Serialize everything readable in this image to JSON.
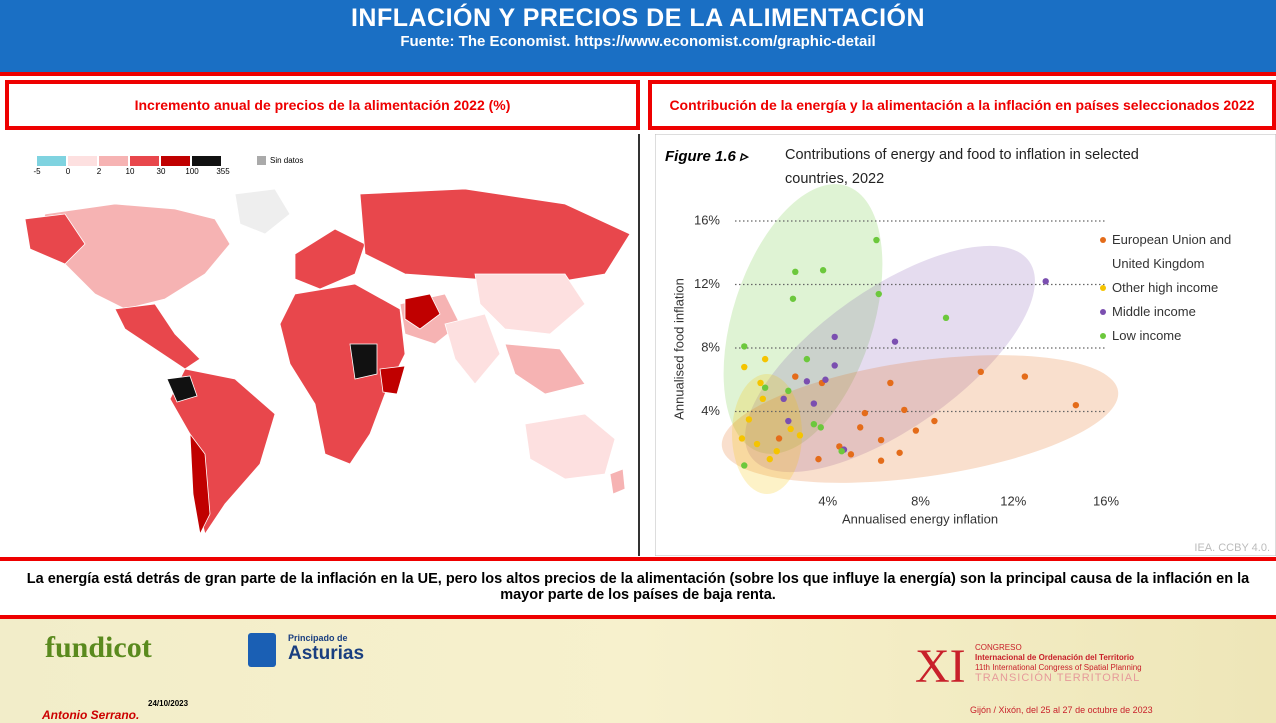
{
  "header": {
    "title": "INFLACIÓN Y PRECIOS DE LA ALIMENTACIÓN",
    "subtitle": "Fuente: The Economist. https://www.economist.com/graphic-detail"
  },
  "left_panel": {
    "title": "Incremento anual de precios de la alimentación 2022 (%)",
    "legend": {
      "ticks": [
        -5,
        0,
        2,
        10,
        30,
        100,
        355
      ],
      "colors": [
        "#7fd3e0",
        "#fde0e0",
        "#f6b3b3",
        "#e8474c",
        "#c00000",
        "#111111"
      ],
      "no_data": "Sin datos",
      "no_data_color": "#aaaaaa"
    }
  },
  "right_panel": {
    "title": "Contribución de la energía y la alimentación a la inflación en países seleccionados 2022"
  },
  "chart_data": {
    "type": "scatter",
    "title": "Figure 1.6 ▹",
    "subtitle": "Contributions of energy and food to inflation in selected countries, 2022",
    "xlabel": "Annualised energy inflation",
    "ylabel": "Annualised food inflation",
    "xlim": [
      0,
      16
    ],
    "ylim": [
      0,
      16
    ],
    "xticks": [
      {
        "value": 4,
        "label": "4%"
      },
      {
        "value": 8,
        "label": "8%"
      },
      {
        "value": 12,
        "label": "12%"
      },
      {
        "value": 16,
        "label": "16%"
      }
    ],
    "yticks": [
      {
        "value": 4,
        "label": "4%"
      },
      {
        "value": 8,
        "label": "8%"
      },
      {
        "value": 12,
        "label": "12%"
      },
      {
        "value": 16,
        "label": "16%"
      }
    ],
    "grid": true,
    "series": [
      {
        "name": "European Union and United Kingdom",
        "color": "#e46c1a",
        "x": [
          14.7,
          12.5,
          10.6,
          8.6,
          7.8,
          7.3,
          6.7,
          6.3,
          6.3,
          7.1,
          5.6,
          5.4,
          4.5,
          3.6,
          2.6,
          1.9,
          3.75,
          5.0
        ],
        "y": [
          4.4,
          6.2,
          6.5,
          3.4,
          2.8,
          4.1,
          5.8,
          0.9,
          2.2,
          1.4,
          3.9,
          3.0,
          1.8,
          1.0,
          6.2,
          2.3,
          5.8,
          1.3
        ]
      },
      {
        "name": "Other high income",
        "color": "#f5c400",
        "x": [
          0.3,
          0.6,
          0.95,
          1.2,
          1.5,
          1.8,
          2.4,
          1.3,
          0.4,
          2.8,
          1.1
        ],
        "y": [
          2.3,
          3.5,
          1.95,
          4.8,
          1.0,
          1.5,
          2.9,
          7.3,
          6.8,
          2.5,
          5.8
        ]
      },
      {
        "name": "Middle income",
        "color": "#7b4fb0",
        "x": [
          13.4,
          6.9,
          4.3,
          4.3,
          3.4,
          3.1,
          2.1,
          3.9,
          4.7,
          2.3
        ],
        "y": [
          12.2,
          8.4,
          8.7,
          6.9,
          4.5,
          5.9,
          4.8,
          6.0,
          1.6,
          3.4
        ]
      },
      {
        "name": "Low income",
        "color": "#6cc83c",
        "x": [
          6.1,
          3.8,
          2.6,
          2.5,
          6.2,
          9.1,
          0.4,
          0.4,
          3.1,
          2.3,
          3.7,
          4.6,
          1.3,
          3.4
        ],
        "y": [
          14.8,
          12.9,
          12.8,
          11.1,
          11.4,
          9.9,
          8.1,
          0.6,
          7.3,
          5.3,
          3.0,
          1.5,
          5.5,
          3.2
        ]
      }
    ],
    "note": "IEA. CCBY 4.0."
  },
  "caption": "La energía está detrás de gran parte de la inflación en la UE, pero los altos precios de la alimentación (sobre los que influye la energía) son la principal causa de la inflación en la mayor parte de los países de baja renta.",
  "footer": {
    "logo1": "fundicot",
    "logo2_small": "Principado de",
    "logo2": "Asturias",
    "congress_number": "XI",
    "congress_line1": "CONGRESO",
    "congress_line2": "Internacional de Ordenación del Territorio",
    "congress_line3": "11th International Congress of Spatial Planning",
    "congress_line4": "TRANSICIÓN TERRITORIAL",
    "congress_place": "Gijón / Xixón, del 25 al 27 de octubre de 2023",
    "author": "Antonio Serrano.",
    "date": "24/10/2023"
  }
}
